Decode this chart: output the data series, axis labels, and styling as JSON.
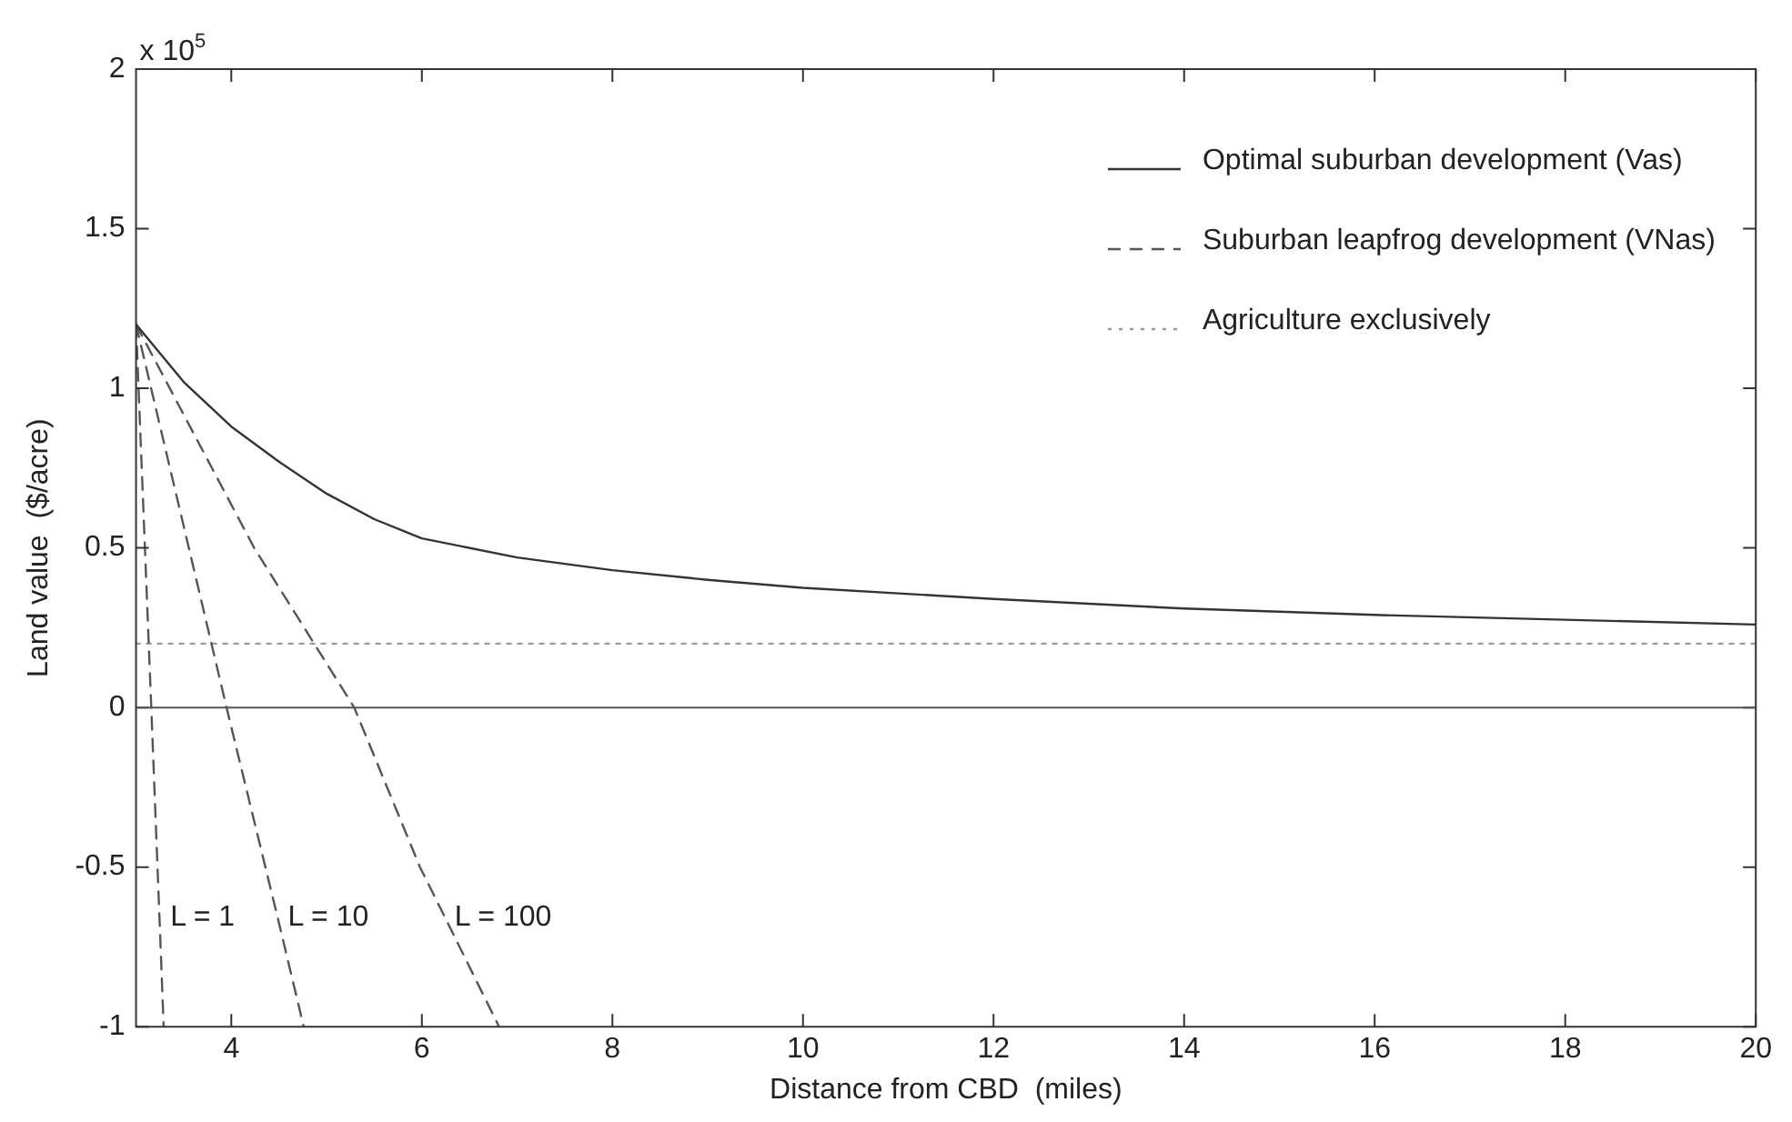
{
  "chart_data": {
    "type": "line",
    "xlabel": "Distance from CBD  (miles)",
    "ylabel": "Land value  ($/acre)",
    "xlim": [
      3,
      20
    ],
    "xticks": [
      4,
      6,
      8,
      10,
      12,
      14,
      16,
      18,
      20
    ],
    "ylim": [
      -1,
      2
    ],
    "yticks": [
      -1,
      -0.5,
      0,
      0.5,
      1,
      1.5,
      2
    ],
    "grid": false,
    "legend": "top right",
    "marker": "none",
    "ref_lines": [
      {
        "axis": "y",
        "value": 0,
        "color": "#555555",
        "line_style": "solid"
      }
    ],
    "annotations": [
      "x 10$^{5}$",
      {
        "text": "L = 1",
        "x": 3.245,
        "y": -0.65
      },
      {
        "text": "L = 10",
        "x": 4.48,
        "y": -0.65
      },
      {
        "text": "L = 100",
        "x": 6.23,
        "y": -0.65
      }
    ],
    "series": [
      {
        "name": "Optimal suburban development (Vas)",
        "color": "#333333",
        "line_style": "solid",
        "x": [
          3,
          3.5,
          4,
          4.5,
          5,
          5.5,
          6,
          7,
          8,
          9,
          10,
          12,
          14,
          16,
          18,
          20
        ],
        "values": [
          1.2,
          1.02,
          0.88,
          0.77,
          0.67,
          0.59,
          0.53,
          0.47,
          0.43,
          0.4,
          0.375,
          0.34,
          0.31,
          0.29,
          0.275,
          0.26
        ]
      },
      {
        "name": "Suburban leapfrog development (VNas)",
        "color": "#555555",
        "line_style": "dashed",
        "x": [
          3,
          3.16,
          3.245,
          3.29
        ],
        "values": [
          1.2,
          0,
          -0.65,
          -1
        ]
      },
      {
        "color": "#555555",
        "line_style": "dashed",
        "x": [
          3,
          3.95,
          4.48,
          4.76
        ],
        "values": [
          1.2,
          0,
          -0.65,
          -1
        ]
      },
      {
        "color": "#555555",
        "line_style": "dashed",
        "x": [
          3,
          4.24,
          5.29,
          5.98,
          6.23,
          6.81
        ],
        "values": [
          1.2,
          0.5,
          0,
          -0.5,
          -0.65,
          -1
        ]
      },
      {
        "name": "Agriculture exclusively",
        "color": "#999999",
        "line_style": "dotted",
        "x": [
          3,
          20
        ],
        "values": [
          0.2,
          0.2
        ]
      }
    ]
  }
}
